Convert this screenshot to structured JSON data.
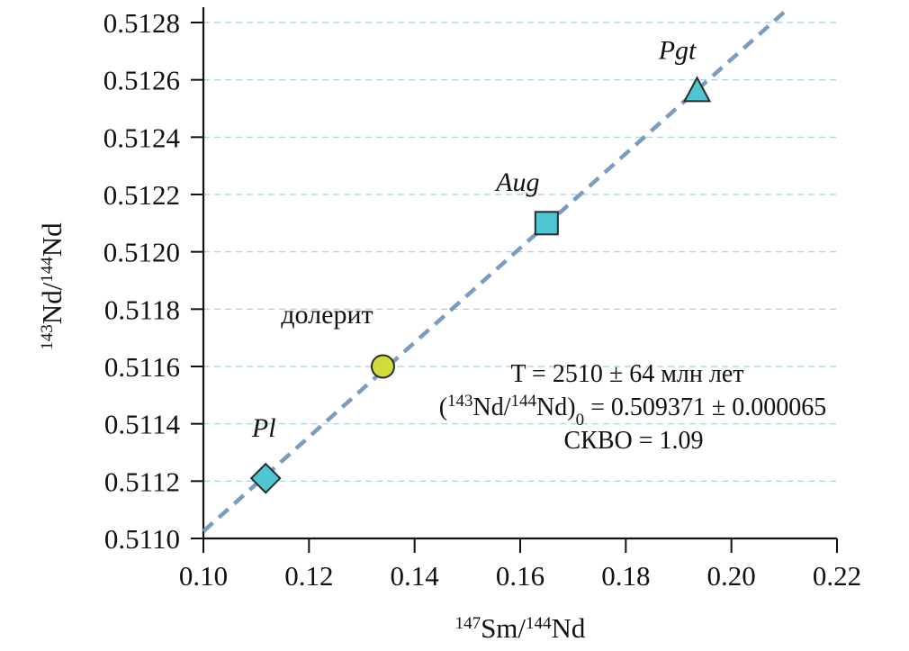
{
  "chart_data": {
    "type": "scatter",
    "xlabel": {
      "sup1": "147",
      "base1": "Sm/",
      "sup2": "144",
      "base2": "Nd"
    },
    "ylabel": {
      "sup1": "143",
      "base1": "Nd/",
      "sup2": "144",
      "base2": "Nd"
    },
    "xlim": [
      0.1,
      0.22
    ],
    "ylim": [
      0.511,
      0.5128
    ],
    "xticks": [
      "0.10",
      "0.12",
      "0.14",
      "0.16",
      "0.18",
      "0.20",
      "0.22"
    ],
    "yticks": [
      "0.5110",
      "0.5112",
      "0.5114",
      "0.5116",
      "0.5118",
      "0.5120",
      "0.5122",
      "0.5124",
      "0.5126",
      "0.5128"
    ],
    "grid": "horizontal dashed",
    "points": [
      {
        "name": "Pl",
        "x": 0.1118,
        "y": 0.51121,
        "marker": "diamond",
        "color": "#4fc4d2",
        "italic": true
      },
      {
        "name": "долерит",
        "x": 0.134,
        "y": 0.5116,
        "marker": "circle",
        "color": "#cfdc3c",
        "italic": false
      },
      {
        "name": "Aug",
        "x": 0.165,
        "y": 0.5121,
        "marker": "square",
        "color": "#4fc4d2",
        "italic": true
      },
      {
        "name": "Pgt",
        "x": 0.1935,
        "y": 0.51256,
        "marker": "triangle",
        "color": "#4fc4d2",
        "italic": true
      }
    ],
    "isochron": {
      "x": [
        0.1,
        0.211
      ],
      "y": [
        0.511025,
        0.512853
      ],
      "color": "#7a9cc0",
      "style": "dashed"
    },
    "annotation": {
      "line1": "T = 2510 ± 64 млн лет",
      "line2": {
        "p1": "(",
        "sup1": "143",
        "p2": "Nd/",
        "sup2": "144",
        "p3": "Nd)",
        "sub": "0",
        "p4": " = 0.509371 ± 0.000065"
      },
      "line3": "СКВО = 1.09"
    }
  }
}
